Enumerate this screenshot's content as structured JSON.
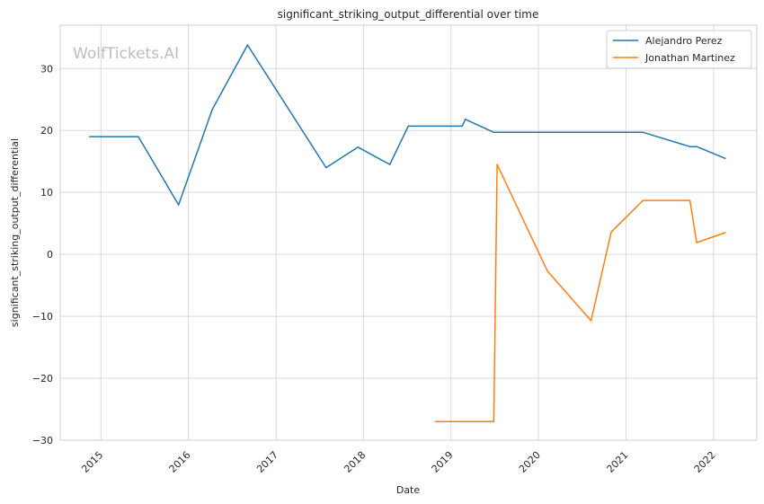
{
  "chart_data": {
    "type": "line",
    "title": "significant_striking_output_differential over time",
    "xlabel": "Date",
    "ylabel": "significant_striking_output_differential",
    "watermark": "WolfTickets.AI",
    "xlim": [
      "2014-07-15",
      "2022-07-01"
    ],
    "ylim": [
      -30,
      37
    ],
    "x_ticks": [
      "2015",
      "2016",
      "2017",
      "2018",
      "2019",
      "2020",
      "2021",
      "2022"
    ],
    "y_ticks": [
      -30,
      -20,
      -10,
      0,
      10,
      20,
      30
    ],
    "y_tick_labels": [
      "−30",
      "−20",
      "−10",
      "0",
      "10",
      "20",
      "30"
    ],
    "grid": true,
    "legend_position": "top-right",
    "series": [
      {
        "name": "Alejandro Perez",
        "color": "#1f77b4",
        "points": [
          [
            "2014-11-15",
            19.0
          ],
          [
            "2015-06-06",
            19.0
          ],
          [
            "2015-11-21",
            8.0
          ],
          [
            "2016-04-10",
            23.4
          ],
          [
            "2016-09-04",
            33.8
          ],
          [
            "2017-07-29",
            14.0
          ],
          [
            "2017-12-09",
            17.3
          ],
          [
            "2018-04-21",
            14.5
          ],
          [
            "2018-07-07",
            20.7
          ],
          [
            "2019-02-17",
            20.7
          ],
          [
            "2019-03-02",
            21.8
          ],
          [
            "2019-06-29",
            19.7
          ],
          [
            "2021-03-13",
            19.7
          ],
          [
            "2021-09-25",
            17.4
          ],
          [
            "2021-10-23",
            17.4
          ],
          [
            "2022-02-19",
            15.5
          ]
        ]
      },
      {
        "name": "Jonathan Martinez",
        "color": "#ff7f0e",
        "points": [
          [
            "2018-10-27",
            -27.0
          ],
          [
            "2019-06-29",
            -27.0
          ],
          [
            "2019-07-13",
            14.5
          ],
          [
            "2020-02-08",
            -2.7
          ],
          [
            "2020-08-08",
            -10.7
          ],
          [
            "2020-10-31",
            3.6
          ],
          [
            "2021-03-13",
            8.7
          ],
          [
            "2021-09-25",
            8.7
          ],
          [
            "2021-10-23",
            1.9
          ],
          [
            "2022-02-19",
            3.5
          ]
        ]
      }
    ]
  }
}
